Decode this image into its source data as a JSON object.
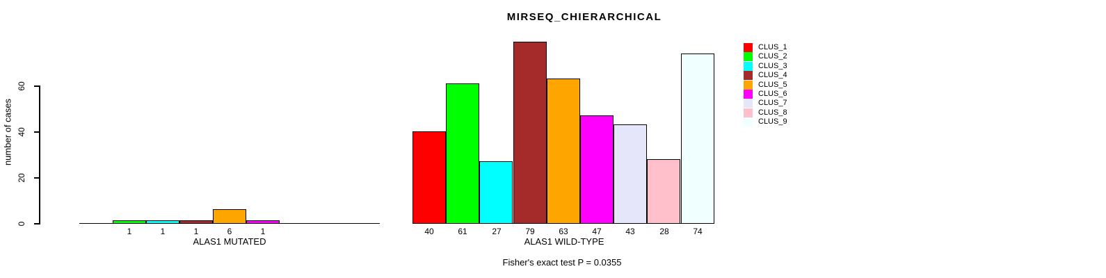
{
  "chart_data": {
    "type": "bar",
    "title": "MIRSEQ_CHIERARCHICAL",
    "ylabel": "number of cases",
    "yticks": [
      0,
      20,
      40,
      60
    ],
    "ylim": [
      0,
      79
    ],
    "grid": false,
    "legend_position": "top-right",
    "categories": [
      "CLUS_1",
      "CLUS_2",
      "CLUS_3",
      "CLUS_4",
      "CLUS_5",
      "CLUS_6",
      "CLUS_7",
      "CLUS_8",
      "CLUS_9"
    ],
    "colors": [
      "#FF0000",
      "#00FF00",
      "#00FFFF",
      "#A52A2A",
      "#FFA500",
      "#FF00FF",
      "#E6E6FA",
      "#FFC0CB",
      "#F0FFFF"
    ],
    "panels": [
      {
        "xlabel": "ALAS1 MUTATED",
        "values": [
          0,
          1,
          1,
          1,
          6,
          1,
          0,
          0,
          0
        ],
        "bar_labels": [
          "",
          "1",
          "1",
          "1",
          "6",
          "1",
          "",
          "",
          ""
        ]
      },
      {
        "xlabel": "ALAS1 WILD-TYPE",
        "values": [
          40,
          61,
          27,
          79,
          63,
          47,
          43,
          28,
          74
        ],
        "bar_labels": [
          "40",
          "61",
          "27",
          "79",
          "63",
          "47",
          "43",
          "28",
          "74"
        ]
      }
    ],
    "footnote": "Fisher's exact test P = 0.0355"
  }
}
